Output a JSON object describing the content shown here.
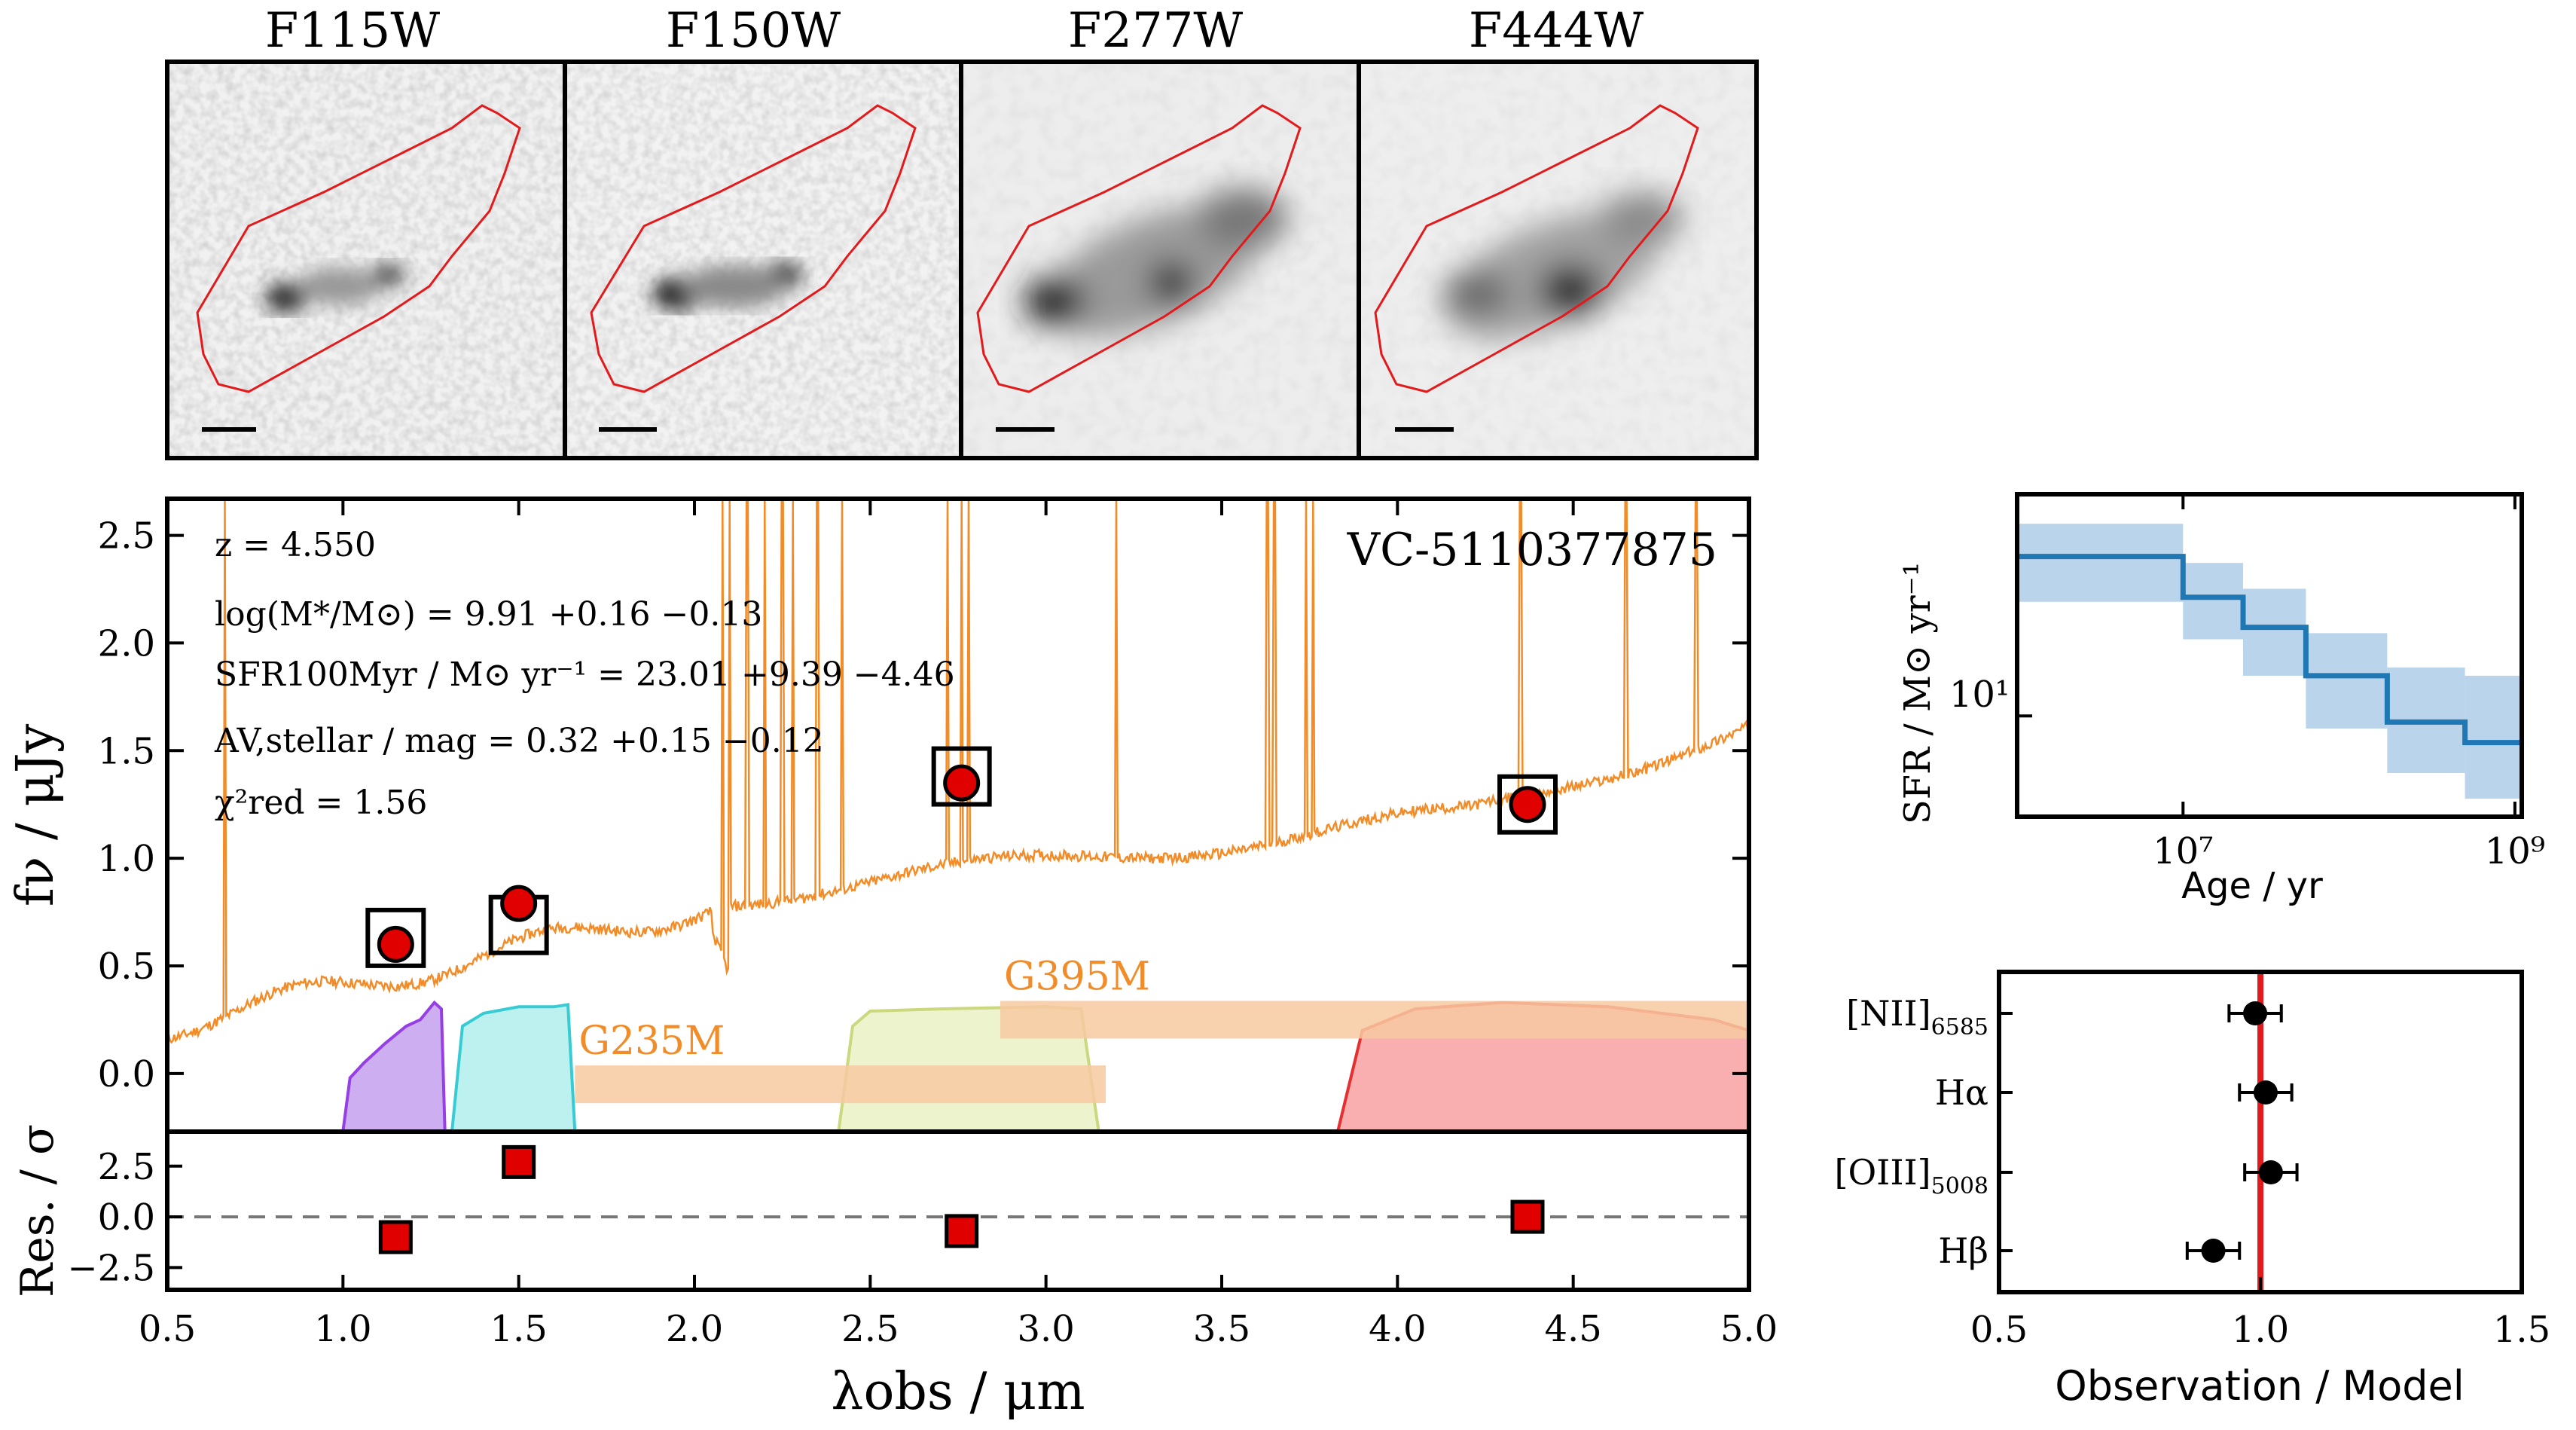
{
  "chart_data": [
    {
      "type": "image-panels",
      "filters": [
        "F115W",
        "F150W",
        "F277W",
        "F444W"
      ]
    },
    {
      "type": "scatter",
      "name": "SED",
      "object_id": "VC-5110377875",
      "annotations": [
        "z = 4.550",
        "log(M*/M⊙) = 9.91 +0.16 −0.13",
        "SFR100Myr / M⊙ yr⁻¹ = 23.01 +9.39 −4.46",
        "AV,stellar / mag = 0.32 +0.15 −0.12",
        "χ²red = 1.56"
      ],
      "ylabel": "fν / μJy",
      "xlabel": "λobs / μm",
      "xlim": [
        0.5,
        5.0
      ],
      "ylim": [
        -0.27,
        2.67
      ],
      "xticks": [
        "0.5",
        "1.0",
        "1.5",
        "2.0",
        "2.5",
        "3.0",
        "3.5",
        "4.0",
        "4.5",
        "5.0"
      ],
      "yticks": [
        "0.0",
        "0.5",
        "1.0",
        "1.5",
        "2.0",
        "2.5"
      ],
      "photometry_observed": [
        {
          "filter": "F115W",
          "x": 1.15,
          "y": 0.6
        },
        {
          "filter": "F150W",
          "x": 1.5,
          "y": 0.79
        },
        {
          "filter": "F277W",
          "x": 2.76,
          "y": 1.35
        },
        {
          "filter": "F444W",
          "x": 4.37,
          "y": 1.25
        }
      ],
      "photometry_model": [
        {
          "x": 1.15,
          "y": 0.63
        },
        {
          "x": 1.5,
          "y": 0.69
        },
        {
          "x": 2.76,
          "y": 1.38
        },
        {
          "x": 4.37,
          "y": 1.25
        }
      ],
      "grisms": [
        {
          "label": "G235M",
          "x_range": [
            1.66,
            3.17
          ],
          "y": -0.05
        },
        {
          "label": "G395M",
          "x_range": [
            2.87,
            5.0
          ],
          "y": 0.25
        }
      ],
      "residuals": {
        "ylabel": "Res. / σ",
        "ylim": [
          -3.6,
          4.2
        ],
        "yticks": [
          "2.5",
          "0.0",
          "−2.5"
        ],
        "points": [
          {
            "x": 1.15,
            "y": -1.0
          },
          {
            "x": 1.5,
            "y": 2.7
          },
          {
            "x": 2.76,
            "y": -0.7
          },
          {
            "x": 4.37,
            "y": 0.0
          }
        ]
      },
      "colors": {
        "model": "#f28c28",
        "obs": "#e00000",
        "grism": "#f7c9a1"
      }
    },
    {
      "type": "step",
      "name": "SFH",
      "ylabel": "SFR / M⊙ yr⁻¹",
      "xlabel": "Age / yr",
      "xscale": "log",
      "yscale": "log",
      "xlim": [
        1000000,
        1100000000
      ],
      "ylim": [
        4.3,
        64
      ],
      "ytick_label": "10¹",
      "xtick_labels": [
        "10⁷",
        "10⁹"
      ],
      "bins": [
        {
          "x0": 1000000,
          "x1": 10000000,
          "y": 38,
          "lo": 26,
          "hi": 50
        },
        {
          "x0": 10000000,
          "x1": 23000000,
          "y": 27,
          "lo": 19,
          "hi": 36
        },
        {
          "x0": 23000000,
          "x1": 55000000,
          "y": 21,
          "lo": 14,
          "hi": 29
        },
        {
          "x0": 55000000,
          "x1": 170000000,
          "y": 14,
          "lo": 9,
          "hi": 20
        },
        {
          "x0": 170000000,
          "x1": 500000000,
          "y": 9.5,
          "lo": 6.2,
          "hi": 15
        },
        {
          "x0": 500000000,
          "x1": 1100000000,
          "y": 8.0,
          "lo": 5.0,
          "hi": 14
        }
      ]
    },
    {
      "type": "errorbar",
      "name": "Line ratios",
      "xlabel": "Observation / Model",
      "xlim": [
        0.5,
        1.5
      ],
      "xticks": [
        "0.5",
        "1.0",
        "1.5"
      ],
      "reference_x": 1.0,
      "lines": [
        {
          "label": "[NII]",
          "sub": "6585",
          "value": 0.99,
          "err": 0.05
        },
        {
          "label": "Hα",
          "sub": "",
          "value": 1.01,
          "err": 0.05
        },
        {
          "label": "[OIII]",
          "sub": "5008",
          "value": 1.02,
          "err": 0.05
        },
        {
          "label": "Hβ",
          "sub": "",
          "value": 0.91,
          "err": 0.05
        }
      ]
    }
  ]
}
